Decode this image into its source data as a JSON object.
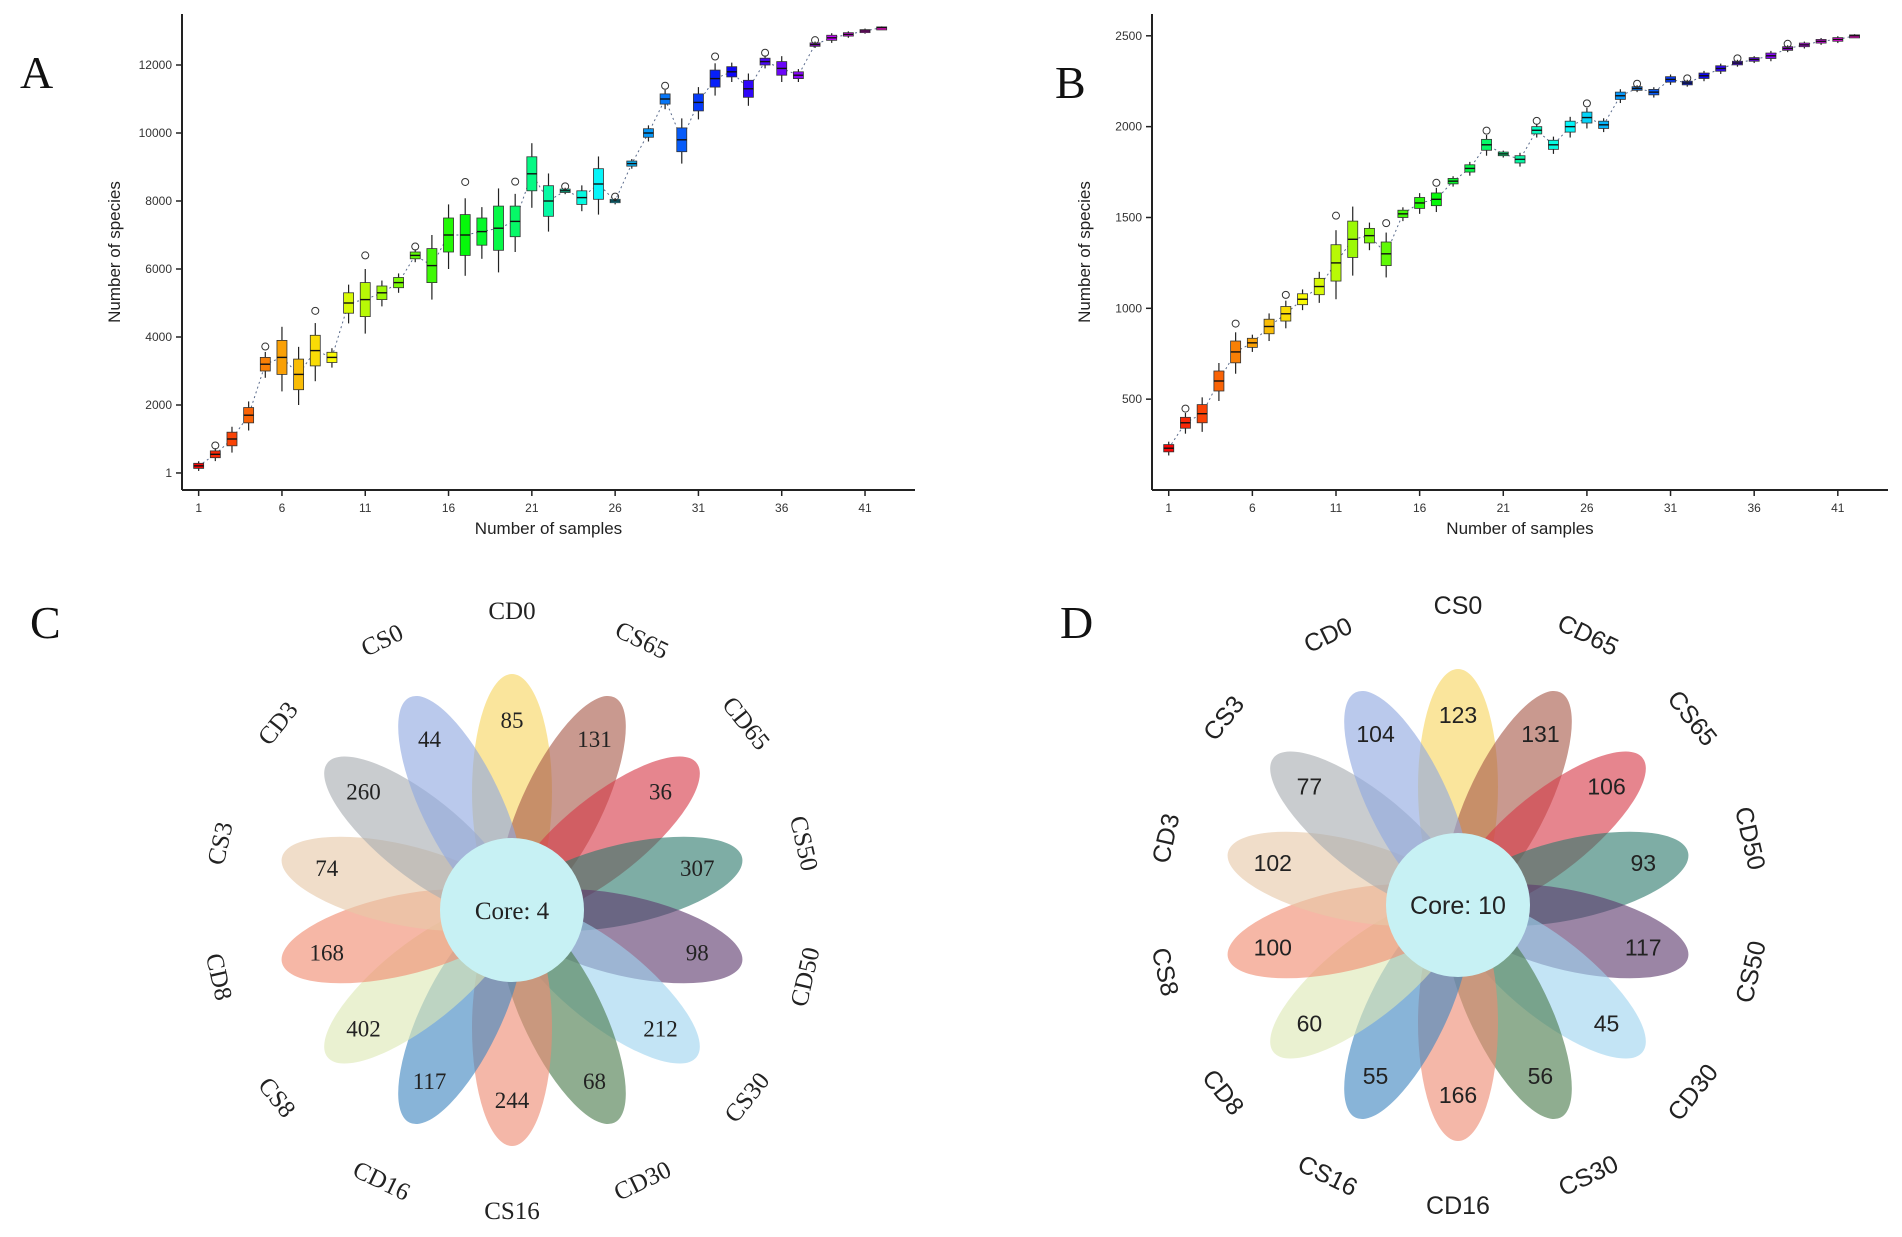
{
  "panels": {
    "A": {
      "letter": "A"
    },
    "B": {
      "letter": "B"
    },
    "C": {
      "letter": "C"
    },
    "D": {
      "letter": "D"
    }
  },
  "colors": {
    "axis": "#222222",
    "trend_line": "#5a6b8c",
    "core_fill": "#c7f1f4",
    "text": "#222222"
  },
  "chart_data": [
    {
      "id": "A",
      "type": "box",
      "xlabel": "Number of samples",
      "ylabel": "Number of species",
      "xlim": [
        0,
        44
      ],
      "ylim": [
        -500,
        13500
      ],
      "xticks": [
        1,
        6,
        11,
        16,
        21,
        26,
        31,
        36,
        41
      ],
      "yticks": [
        1,
        2000,
        4000,
        6000,
        8000,
        10000,
        12000
      ],
      "medians": [
        210,
        550,
        1000,
        1700,
        3200,
        3400,
        2900,
        3600,
        3400,
        5000,
        5100,
        5300,
        5600,
        6400,
        6100,
        7000,
        7000,
        7100,
        7200,
        7400,
        8800,
        8000,
        8300,
        8100,
        8500,
        8000,
        9100,
        10000,
        11000,
        9800,
        10900,
        11600,
        11800,
        11300,
        12100,
        11900,
        11700,
        12600,
        12800,
        12900,
        13000,
        13100
      ],
      "spreads": [
        150,
        200,
        400,
        450,
        400,
        1000,
        900,
        900,
        300,
        600,
        1000,
        400,
        300,
        200,
        1000,
        1000,
        1200,
        800,
        1300,
        900,
        1000,
        900,
        100,
        400,
        900,
        100,
        150,
        250,
        300,
        700,
        500,
        500,
        300,
        500,
        200,
        400,
        200,
        100,
        150,
        100,
        80,
        40
      ]
    },
    {
      "id": "B",
      "type": "box",
      "xlabel": "Number of samples",
      "ylabel": "Number of species",
      "xlim": [
        0,
        44
      ],
      "ylim": [
        0,
        2620
      ],
      "xticks": [
        1,
        6,
        11,
        16,
        21,
        26,
        31,
        36,
        41
      ],
      "yticks": [
        500,
        1000,
        1500,
        2000,
        2500
      ],
      "medians": [
        230,
        370,
        420,
        600,
        760,
        810,
        900,
        970,
        1050,
        1120,
        1250,
        1380,
        1400,
        1300,
        1520,
        1580,
        1600,
        1700,
        1770,
        1900,
        1850,
        1820,
        1980,
        1900,
        2000,
        2050,
        2010,
        2170,
        2210,
        2190,
        2260,
        2240,
        2280,
        2320,
        2350,
        2370,
        2390,
        2430,
        2450,
        2470,
        2480,
        2500
      ],
      "spreads": [
        40,
        60,
        100,
        110,
        120,
        50,
        80,
        80,
        60,
        90,
        200,
        200,
        80,
        130,
        40,
        60,
        70,
        30,
        40,
        60,
        20,
        40,
        40,
        50,
        60,
        60,
        40,
        40,
        20,
        30,
        30,
        20,
        30,
        30,
        20,
        20,
        30,
        20,
        20,
        20,
        20,
        10
      ]
    },
    {
      "id": "C",
      "type": "flower",
      "core_label": "Core: 4",
      "petals": [
        {
          "name": "CD0",
          "value": 85,
          "color": "#f7d560"
        },
        {
          "name": "CS65",
          "value": 131,
          "color": "#a85a4a"
        },
        {
          "name": "CD65",
          "value": 36,
          "color": "#d63a48"
        },
        {
          "name": "CS50",
          "value": 307,
          "color": "#2f7a6e"
        },
        {
          "name": "CD50",
          "value": 98,
          "color": "#5e3a6e"
        },
        {
          "name": "CS30",
          "value": 212,
          "color": "#9ed4ef"
        },
        {
          "name": "CD30",
          "value": 68,
          "color": "#4a7a4c"
        },
        {
          "name": "CS16",
          "value": 244,
          "color": "#ee8a72"
        },
        {
          "name": "CD16",
          "value": 117,
          "color": "#3f86c0"
        },
        {
          "name": "CS8",
          "value": 402,
          "color": "#dde8b4"
        },
        {
          "name": "CD8",
          "value": 168,
          "color": "#f08a70"
        },
        {
          "name": "CS3",
          "value": 74,
          "color": "#e6c8a8"
        },
        {
          "name": "CD3",
          "value": 260,
          "color": "#a8adb2"
        },
        {
          "name": "CS0",
          "value": 44,
          "color": "#8fa8e0"
        }
      ]
    },
    {
      "id": "D",
      "type": "flower",
      "core_label": "Core: 10",
      "petals": [
        {
          "name": "CS0",
          "value": 123,
          "color": "#f7d560"
        },
        {
          "name": "CD65",
          "value": 131,
          "color": "#a85a4a"
        },
        {
          "name": "CS65",
          "value": 106,
          "color": "#d63a48"
        },
        {
          "name": "CD50",
          "value": 93,
          "color": "#2f7a6e"
        },
        {
          "name": "CS50",
          "value": 117,
          "color": "#5e3a6e"
        },
        {
          "name": "CD30",
          "value": 45,
          "color": "#9ed4ef"
        },
        {
          "name": "CS30",
          "value": 56,
          "color": "#4a7a4c"
        },
        {
          "name": "CD16",
          "value": 166,
          "color": "#ee8a72"
        },
        {
          "name": "CS16",
          "value": 55,
          "color": "#3f86c0"
        },
        {
          "name": "CD8",
          "value": 60,
          "color": "#dde8b4"
        },
        {
          "name": "CS8",
          "value": 100,
          "color": "#f08a70"
        },
        {
          "name": "CD3",
          "value": 102,
          "color": "#e6c8a8"
        },
        {
          "name": "CS3",
          "value": 77,
          "color": "#a8adb2"
        },
        {
          "name": "CD0",
          "value": 104,
          "color": "#8fa8e0"
        }
      ]
    }
  ]
}
